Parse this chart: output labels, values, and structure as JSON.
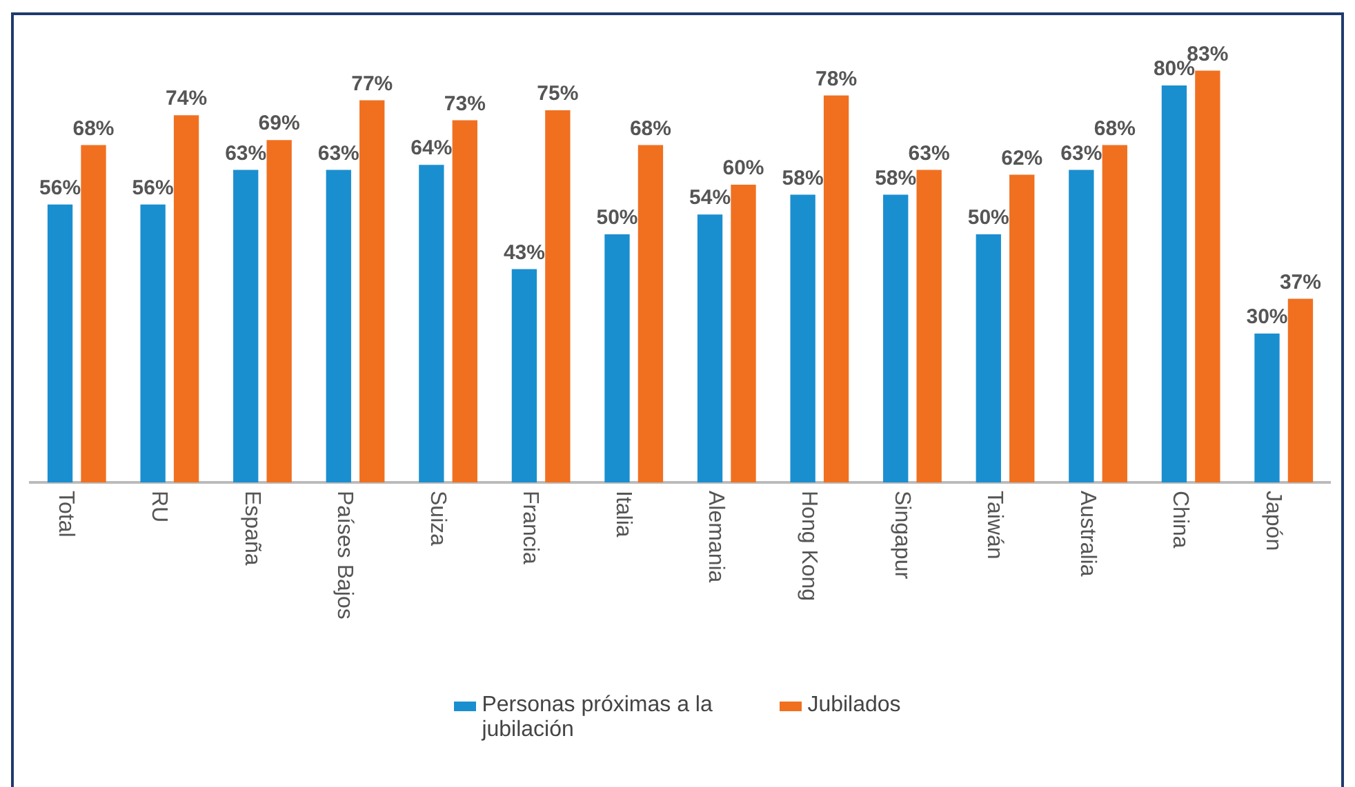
{
  "chart_data": {
    "type": "bar",
    "categories": [
      "Total",
      "RU",
      "España",
      "Países Bajos",
      "Suiza",
      "Francia",
      "Italia",
      "Alemania",
      "Hong Kong",
      "Singapur",
      "Taiwán",
      "Australia",
      "China",
      "Japón"
    ],
    "series": [
      {
        "name": "Personas próximas a la jubilación",
        "color": "#1a8fd0",
        "values": [
          56,
          56,
          63,
          63,
          64,
          43,
          50,
          54,
          58,
          58,
          50,
          63,
          80,
          30
        ],
        "value_labels": [
          "56%",
          "56%",
          "63%",
          "63%",
          "64%",
          "43%",
          "50%",
          "54%",
          "58%",
          "58%",
          "50%",
          "63%",
          "80%",
          "30%"
        ]
      },
      {
        "name": "Jubilados",
        "color": "#f07020",
        "values": [
          68,
          74,
          69,
          77,
          73,
          75,
          68,
          60,
          78,
          63,
          62,
          68,
          83,
          37
        ],
        "value_labels": [
          "68%",
          "74%",
          "69%",
          "77%",
          "73%",
          "75%",
          "68%",
          "60%",
          "78%",
          "63%",
          "62%",
          "68%",
          "83%",
          "37%"
        ]
      }
    ],
    "legend": "bottom",
    "grid": false,
    "tick_labels": "x"
  }
}
